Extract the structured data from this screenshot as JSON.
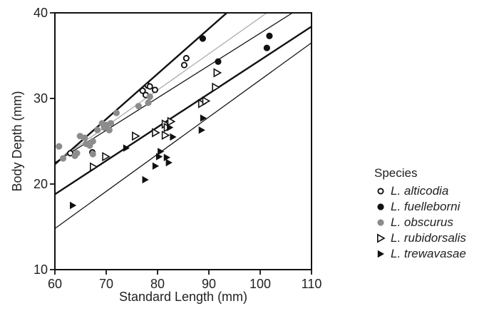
{
  "chart_data": {
    "type": "scatter",
    "xlabel": "Standard Length (mm)",
    "ylabel": "Body Depth (mm)",
    "xlim": [
      60,
      110
    ],
    "ylim": [
      10,
      40
    ],
    "xticks": [
      60,
      70,
      80,
      90,
      100,
      110
    ],
    "yticks": [
      10,
      20,
      30,
      40
    ],
    "grid": false,
    "legend_title": "Species",
    "legend_placement": "right",
    "series": [
      {
        "name": "L. alticodia",
        "marker": "open-circle",
        "color": "#111111",
        "points": [
          [
            63.0,
            23.6
          ],
          [
            67.3,
            23.7
          ],
          [
            77.1,
            30.9
          ],
          [
            77.7,
            30.4
          ],
          [
            78.1,
            31.5
          ],
          [
            78.5,
            31.4
          ],
          [
            79.5,
            31.0
          ],
          [
            85.2,
            33.9
          ],
          [
            85.6,
            34.7
          ]
        ]
      },
      {
        "name": "L. fuelleborni",
        "marker": "filled-circle",
        "color": "#111111",
        "points": [
          [
            88.8,
            37.0
          ],
          [
            91.8,
            34.3
          ],
          [
            101.3,
            35.9
          ],
          [
            101.8,
            37.3
          ]
        ]
      },
      {
        "name": "L. obscurus",
        "marker": "filled-circle",
        "color": "#8c8c8c",
        "points": [
          [
            60.8,
            24.4
          ],
          [
            61.6,
            23.0
          ],
          [
            63.9,
            23.3
          ],
          [
            64.3,
            23.6
          ],
          [
            64.9,
            25.6
          ],
          [
            65.8,
            25.4
          ],
          [
            66.1,
            24.7
          ],
          [
            66.8,
            24.5
          ],
          [
            67.4,
            25.0
          ],
          [
            67.4,
            23.5
          ],
          [
            68.3,
            26.3
          ],
          [
            69.2,
            27.1
          ],
          [
            69.6,
            26.6
          ],
          [
            70.1,
            26.9
          ],
          [
            70.6,
            26.3
          ],
          [
            70.9,
            27.1
          ],
          [
            72.0,
            28.3
          ],
          [
            76.3,
            29.1
          ],
          [
            78.2,
            29.5
          ],
          [
            78.5,
            30.2
          ]
        ]
      },
      {
        "name": "L. rubidorsalis",
        "marker": "open-triangle-right",
        "color": "#111111",
        "points": [
          [
            67.5,
            22.0
          ],
          [
            69.9,
            23.2
          ],
          [
            75.7,
            25.6
          ],
          [
            79.6,
            26.0
          ],
          [
            81.5,
            25.7
          ],
          [
            81.5,
            27.0
          ],
          [
            81.9,
            26.6
          ],
          [
            82.6,
            27.3
          ],
          [
            88.6,
            29.4
          ],
          [
            89.4,
            29.7
          ],
          [
            91.3,
            31.3
          ],
          [
            91.6,
            33.0
          ]
        ]
      },
      {
        "name": "L. trewavasae",
        "marker": "filled-triangle-right",
        "color": "#111111",
        "points": [
          [
            63.5,
            17.5
          ],
          [
            73.9,
            24.2
          ],
          [
            77.6,
            20.5
          ],
          [
            79.6,
            22.1
          ],
          [
            80.3,
            23.2
          ],
          [
            80.6,
            23.8
          ],
          [
            81.8,
            23.1
          ],
          [
            82.2,
            22.5
          ],
          [
            82.4,
            26.6
          ],
          [
            83.0,
            25.5
          ],
          [
            88.6,
            26.3
          ],
          [
            88.9,
            27.7
          ]
        ]
      }
    ],
    "fit_lines": [
      {
        "series": "L. alticodia",
        "x": [
          60,
          93.5
        ],
        "y": [
          22.3,
          40
        ],
        "stroke": "#111111",
        "width": 2.4
      },
      {
        "series": "L. obscurus",
        "x": [
          60,
          101.3
        ],
        "y": [
          22.5,
          40
        ],
        "stroke": "#aaaaaa",
        "width": 1.3
      },
      {
        "series": "L. fuelleborni",
        "x": [
          60,
          106.3
        ],
        "y": [
          22.5,
          40
        ],
        "stroke": "#111111",
        "width": 1.3
      },
      {
        "series": "L. rubidorsalis",
        "x": [
          60,
          110
        ],
        "y": [
          18.8,
          38.4
        ],
        "stroke": "#111111",
        "width": 2.4
      },
      {
        "series": "L. trewavasae",
        "x": [
          60,
          110
        ],
        "y": [
          14.8,
          36.5
        ],
        "stroke": "#111111",
        "width": 1.3
      }
    ]
  }
}
